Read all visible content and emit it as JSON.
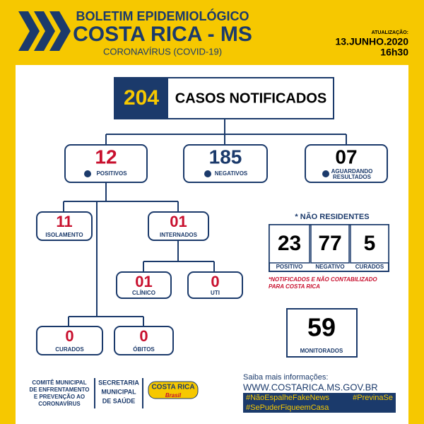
{
  "header": {
    "title": "BOLETIM EPIDEMIOLÓGICO",
    "place": "COSTA RICA - MS",
    "subtitle": "CORONAVÍRUS (COVID-19)",
    "update_label": "ATUALIZAÇÃO:",
    "date": "13.JUNHO.2020",
    "time": "16h30"
  },
  "total": {
    "value": "204",
    "label": "CASOS NOTIFICADOS"
  },
  "status": [
    {
      "value": "12",
      "label": [
        "POSITIVOS"
      ]
    },
    {
      "value": "185",
      "label": [
        "NEGATIVOS"
      ]
    },
    {
      "value": "07",
      "label": [
        "AGUARDANDO",
        "RESULTADOS"
      ]
    }
  ],
  "positives": [
    {
      "value": "11",
      "label": "ISOLAMENTO"
    },
    {
      "value": "01",
      "label": "INTERNADOS"
    },
    {
      "value": "01",
      "label": "CLÍNICO"
    },
    {
      "value": "0",
      "label": "UTI"
    },
    {
      "value": "0",
      "label": "CURADOS"
    },
    {
      "value": "0",
      "label": "ÓBITOS"
    }
  ],
  "non_residents": {
    "title": "* NÃO RESIDENTES",
    "items": [
      {
        "value": "23",
        "label": "POSITIVO"
      },
      {
        "value": "77",
        "label": "NEGATIVO"
      },
      {
        "value": "5",
        "label": "CURADOS"
      }
    ],
    "note": [
      "*NOTIFICADOS E NÃO CONTABILIZADO",
      "PARA COSTA RICA"
    ]
  },
  "monitored": {
    "value": "59",
    "label": "MONITORADOS"
  },
  "footer": {
    "committee": [
      "COMITÊ MUNICIPAL",
      "DE ENFRENTAMENTO",
      "E PREVENÇÃO AO",
      "CORONAVÍRUS"
    ],
    "secretariat": [
      "SECRETARIA",
      "MUNICIPAL",
      "DE SAÚDE"
    ],
    "logo": [
      "COSTA RICA",
      "Brasil"
    ],
    "info": "Saiba mais informações:",
    "url": "WWW.COSTARICA.MS.GOV.BR",
    "hashtags": [
      "#NãoEspalheFakeNews",
      "#PrevinaSe",
      "#SePuderFiqueemCasa"
    ]
  }
}
